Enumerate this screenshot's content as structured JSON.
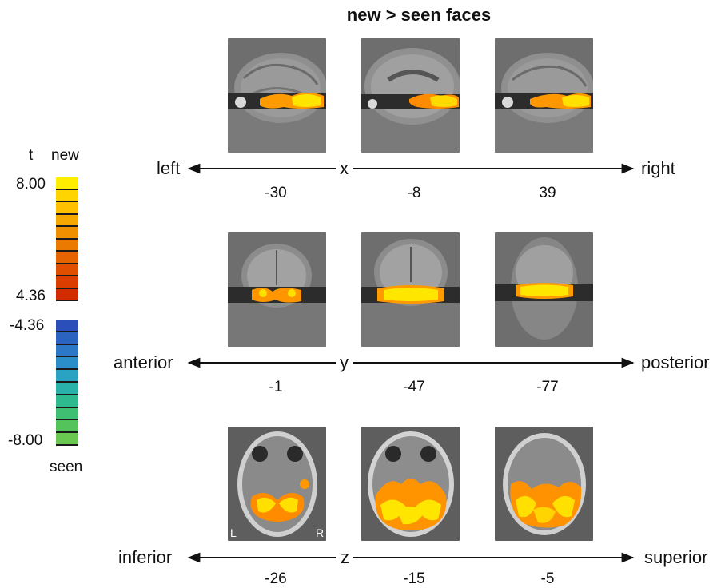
{
  "title": "new > seen faces",
  "colorbar": {
    "axis_label": "t",
    "positive_label": "new",
    "negative_label": "seen",
    "positive_max": "8.00",
    "positive_min": "4.36",
    "negative_min": "-4.36",
    "negative_max": "-8.00",
    "warm_colors": [
      "#ffee00",
      "#ffd400",
      "#ffc000",
      "#f7a800",
      "#f09000",
      "#eb7a00",
      "#e66400",
      "#e04f00",
      "#db3d00",
      "#d42a00"
    ],
    "cool_colors": [
      "#2a4fb8",
      "#2d63c0",
      "#2c77c6",
      "#2b8ec9",
      "#2aa3c2",
      "#28b2aa",
      "#2fb98e",
      "#3fbf72",
      "#54c35c",
      "#6ac850"
    ]
  },
  "rows": [
    {
      "axis": "x",
      "left_label": "left",
      "right_label": "right",
      "coords": [
        "-30",
        "-8",
        "39"
      ],
      "view": "sagittal"
    },
    {
      "axis": "y",
      "left_label": "anterior",
      "right_label": "posterior",
      "coords": [
        "-1",
        "-47",
        "-77"
      ],
      "view": "coronal"
    },
    {
      "axis": "z",
      "left_label": "inferior",
      "right_label": "superior",
      "coords": [
        "-26",
        "-15",
        "-5"
      ],
      "view": "axial"
    }
  ],
  "orientation": {
    "left": "L",
    "right": "R"
  }
}
